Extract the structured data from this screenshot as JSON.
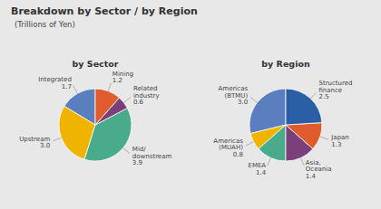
{
  "title": "Breakdown by Sector / by Region",
  "subtitle": "(Trillions of Yen)",
  "chart_data": [
    {
      "type": "pie",
      "title": "by Sector",
      "categories": [
        "Integrated",
        "Upstream",
        "Mid/\ndownstream",
        "Related\nindustry",
        "Mining"
      ],
      "values": [
        1.7,
        3.0,
        3.9,
        0.6,
        1.2
      ],
      "value_labels": [
        "1.7",
        "3.0",
        "3.9",
        "0.6",
        "1.2"
      ],
      "colors": [
        "#5b7fbe",
        "#f0b400",
        "#4aaa8c",
        "#7b3f7a",
        "#e05c2e"
      ],
      "data_labels": true
    },
    {
      "type": "pie",
      "title": "by Region",
      "categories": [
        "Americas\n(BTMU)",
        "Americas\n(MUAH)",
        "EMEA",
        "Asia,\nOceania",
        "Japan",
        "Structured\nfinance"
      ],
      "values": [
        3.0,
        0.8,
        1.4,
        1.4,
        1.3,
        2.5
      ],
      "value_labels": [
        "3.0",
        "0.8",
        "1.4",
        "1.4",
        "1.3",
        "2.5"
      ],
      "colors": [
        "#5b7fbe",
        "#f0b400",
        "#4aaa8c",
        "#7b3f7a",
        "#e05c2e",
        "#2a5fa5"
      ],
      "data_labels": true
    }
  ]
}
